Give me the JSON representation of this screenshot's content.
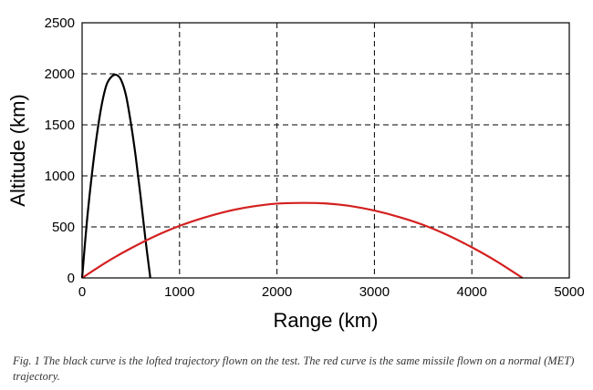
{
  "chart_data": {
    "type": "line",
    "xlabel": "Range (km)",
    "ylabel": "Altitude (km)",
    "xlim": [
      0,
      5000
    ],
    "ylim": [
      0,
      2500
    ],
    "xticks": [
      0,
      1000,
      2000,
      3000,
      4000,
      5000
    ],
    "yticks": [
      0,
      500,
      1000,
      1500,
      2000,
      2500
    ],
    "grid": true,
    "grid_style": "dashed",
    "series": [
      {
        "color": "#000000",
        "x": [
          0,
          50,
          100,
          150,
          200,
          250,
          300,
          350,
          400,
          450,
          500,
          550,
          600,
          650,
          700
        ],
        "y": [
          0,
          560,
          1010,
          1390,
          1690,
          1890,
          1970,
          1990,
          1940,
          1790,
          1520,
          1190,
          800,
          380,
          0
        ]
      },
      {
        "color": "#d42020",
        "x": [
          0,
          250,
          500,
          750,
          1000,
          1250,
          1500,
          1750,
          2000,
          2250,
          2500,
          2750,
          3000,
          3250,
          3500,
          3750,
          4000,
          4250,
          4520
        ],
        "y": [
          0,
          155,
          290,
          410,
          510,
          590,
          655,
          700,
          728,
          735,
          730,
          705,
          660,
          598,
          520,
          420,
          300,
          165,
          0
        ]
      }
    ]
  },
  "caption": "Fig. 1  The black curve is the lofted trajectory flown on the test. The red curve is the same missile flown on a normal (MET) trajectory."
}
